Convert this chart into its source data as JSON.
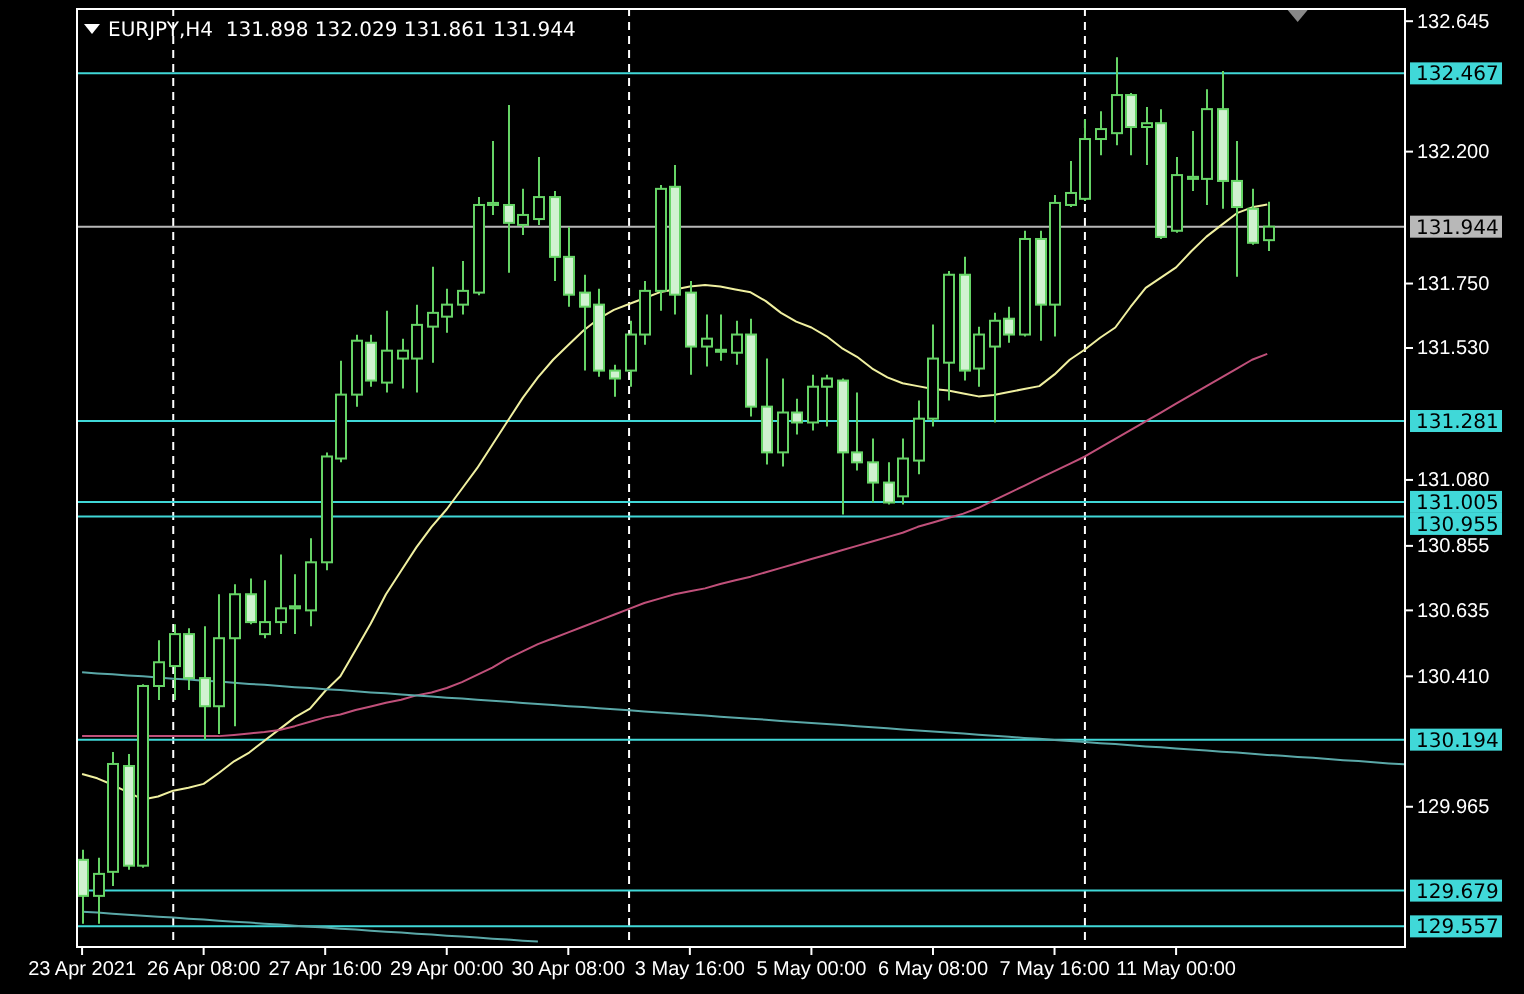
{
  "chart_data": {
    "type": "candlestick",
    "title": "EURJPY,H4  131.898 132.029 131.861 131.944",
    "color": "#66d466",
    "categories": [
      "23 Apr 2021",
      null,
      null,
      null,
      null,
      null,
      null,
      null,
      "26 Apr 08:00",
      null,
      null,
      null,
      null,
      null,
      null,
      null,
      "27 Apr 16:00",
      null,
      null,
      null,
      null,
      null,
      null,
      null,
      "29 Apr 00:00",
      null,
      null,
      null,
      null,
      null,
      null,
      null,
      "30 Apr 08:00",
      null,
      null,
      null,
      null,
      null,
      null,
      null,
      "3 May 16:00",
      null,
      null,
      null,
      null,
      null,
      null,
      null,
      "5 May 00:00",
      null,
      null,
      null,
      null,
      null,
      null,
      null,
      "6 May 08:00",
      null,
      null,
      null,
      null,
      null,
      null,
      null,
      "7 May 16:00",
      null,
      null,
      null,
      null,
      null,
      null,
      null,
      "11 May 00:00",
      null,
      null,
      null,
      null,
      null,
      null,
      null,
      null,
      null,
      null,
      null,
      null,
      null,
      null,
      null
    ],
    "ohlc": [
      [
        129.784,
        129.818,
        129.566,
        129.661
      ],
      [
        129.661,
        129.791,
        129.566,
        129.736
      ],
      [
        129.743,
        130.152,
        129.695,
        130.111
      ],
      [
        130.104,
        130.145,
        129.75,
        129.764
      ],
      [
        129.764,
        130.383,
        129.757,
        130.377
      ],
      [
        130.377,
        130.533,
        130.329,
        130.458
      ],
      [
        130.445,
        130.588,
        130.329,
        130.554
      ],
      [
        130.554,
        130.574,
        130.363,
        130.404
      ],
      [
        130.404,
        130.581,
        130.193,
        130.308
      ],
      [
        130.308,
        130.69,
        130.213,
        130.54
      ],
      [
        130.54,
        130.724,
        130.24,
        130.69
      ],
      [
        130.69,
        130.744,
        130.588,
        130.595
      ],
      [
        130.554,
        130.738,
        130.54,
        130.595
      ],
      [
        130.595,
        130.826,
        130.554,
        130.642
      ],
      [
        130.642,
        130.758,
        130.554,
        130.649
      ],
      [
        130.635,
        130.881,
        130.581,
        130.799
      ],
      [
        130.799,
        131.174,
        130.772,
        131.16
      ],
      [
        131.153,
        131.487,
        131.14,
        131.371
      ],
      [
        131.371,
        131.575,
        131.33,
        131.555
      ],
      [
        131.548,
        131.575,
        131.398,
        131.419
      ],
      [
        131.412,
        131.657,
        131.378,
        131.521
      ],
      [
        131.494,
        131.562,
        131.392,
        131.521
      ],
      [
        131.494,
        131.678,
        131.378,
        131.609
      ],
      [
        131.603,
        131.807,
        131.48,
        131.65
      ],
      [
        131.637,
        131.732,
        131.582,
        131.678
      ],
      [
        131.678,
        131.827,
        131.644,
        131.725
      ],
      [
        131.719,
        132.045,
        131.71,
        132.018
      ],
      [
        132.018,
        132.236,
        131.984,
        132.025
      ],
      [
        132.018,
        132.359,
        131.787,
        131.957
      ],
      [
        131.95,
        132.073,
        131.916,
        131.984
      ],
      [
        131.97,
        132.182,
        131.95,
        132.045
      ],
      [
        132.045,
        132.066,
        131.759,
        131.841
      ],
      [
        131.841,
        131.943,
        131.671,
        131.712
      ],
      [
        131.719,
        131.78,
        131.453,
        131.671
      ],
      [
        131.678,
        131.732,
        131.432,
        131.453
      ],
      [
        131.453,
        131.473,
        131.364,
        131.426
      ],
      [
        131.453,
        131.623,
        131.398,
        131.576
      ],
      [
        131.576,
        131.759,
        131.541,
        131.725
      ],
      [
        131.725,
        132.086,
        131.657,
        132.073
      ],
      [
        132.08,
        132.154,
        131.644,
        131.712
      ],
      [
        131.719,
        131.759,
        131.439,
        131.535
      ],
      [
        131.535,
        131.644,
        131.467,
        131.562
      ],
      [
        131.521,
        131.644,
        131.487,
        131.524
      ],
      [
        131.514,
        131.623,
        131.473,
        131.576
      ],
      [
        131.576,
        131.63,
        131.296,
        131.33
      ],
      [
        131.33,
        131.494,
        131.133,
        131.174
      ],
      [
        131.174,
        131.426,
        131.126,
        131.31
      ],
      [
        131.31,
        131.357,
        131.235,
        131.276
      ],
      [
        131.276,
        131.439,
        131.249,
        131.398
      ],
      [
        131.398,
        131.439,
        131.262,
        131.426
      ],
      [
        131.419,
        131.426,
        130.962,
        131.174
      ],
      [
        131.174,
        131.378,
        131.112,
        131.14
      ],
      [
        131.14,
        131.221,
        131.003,
        131.071
      ],
      [
        131.071,
        131.14,
        130.996,
        131.003
      ],
      [
        131.024,
        131.221,
        130.996,
        131.153
      ],
      [
        131.146,
        131.351,
        131.099,
        131.289
      ],
      [
        131.289,
        131.61,
        131.262,
        131.494
      ],
      [
        131.48,
        131.793,
        131.351,
        131.78
      ],
      [
        131.78,
        131.841,
        131.419,
        131.453
      ],
      [
        131.46,
        131.603,
        131.398,
        131.576
      ],
      [
        131.535,
        131.65,
        131.276,
        131.623
      ],
      [
        131.63,
        131.671,
        131.548,
        131.576
      ],
      [
        131.576,
        131.93,
        131.569,
        131.902
      ],
      [
        131.902,
        131.93,
        131.555,
        131.678
      ],
      [
        131.678,
        132.052,
        131.569,
        132.025
      ],
      [
        132.018,
        132.168,
        132.011,
        132.059
      ],
      [
        132.039,
        132.311,
        132.032,
        132.243
      ],
      [
        132.243,
        132.338,
        132.188,
        132.277
      ],
      [
        132.263,
        132.522,
        132.222,
        132.393
      ],
      [
        132.393,
        132.4,
        132.188,
        132.284
      ],
      [
        132.284,
        132.352,
        132.154,
        132.297
      ],
      [
        132.297,
        132.345,
        131.902,
        131.909
      ],
      [
        131.93,
        132.182,
        131.923,
        132.12
      ],
      [
        132.107,
        132.27,
        132.066,
        132.114
      ],
      [
        132.107,
        132.413,
        132.018,
        132.345
      ],
      [
        132.345,
        132.475,
        132.005,
        132.1
      ],
      [
        132.1,
        132.236,
        131.773,
        132.011
      ],
      [
        132.005,
        132.073,
        131.882,
        131.889
      ],
      [
        131.898,
        132.029,
        131.861,
        131.944
      ],
      null,
      null,
      null,
      null,
      null,
      null,
      null,
      null,
      null
    ],
    "series": [
      {
        "type": "line",
        "color": "#f0f0a0",
        "values": [
          130.077,
          130.062,
          130.04,
          130.015,
          129.99,
          130.0,
          130.02,
          130.03,
          130.043,
          130.08,
          130.12,
          130.15,
          130.19,
          130.23,
          130.27,
          130.3,
          130.36,
          130.41,
          130.5,
          130.59,
          130.69,
          130.77,
          130.85,
          130.92,
          130.98,
          131.05,
          131.12,
          131.2,
          131.28,
          131.36,
          131.43,
          131.49,
          131.54,
          131.59,
          131.63,
          131.66,
          131.68,
          131.7,
          131.72,
          131.73,
          131.74,
          131.745,
          131.74,
          131.73,
          131.72,
          131.69,
          131.65,
          131.62,
          131.6,
          131.57,
          131.53,
          131.5,
          131.46,
          131.43,
          131.41,
          131.4,
          131.39,
          131.385,
          131.375,
          131.365,
          131.37,
          131.38,
          131.39,
          131.4,
          131.44,
          131.49,
          131.525,
          131.565,
          131.6,
          131.67,
          131.735,
          131.77,
          131.805,
          131.86,
          131.91,
          131.95,
          131.99,
          132.01,
          132.02,
          null,
          null,
          null,
          null,
          null,
          null,
          null,
          null,
          null
        ]
      },
      {
        "type": "line",
        "color": "#c0507a",
        "values": [
          130.206,
          130.206,
          130.206,
          130.206,
          130.206,
          130.206,
          130.206,
          130.206,
          130.206,
          130.206,
          130.21,
          130.215,
          130.22,
          130.227,
          130.24,
          130.255,
          130.27,
          130.28,
          130.295,
          130.307,
          130.32,
          130.33,
          130.345,
          130.355,
          130.37,
          130.39,
          130.415,
          130.44,
          130.47,
          130.495,
          130.52,
          130.54,
          130.56,
          130.58,
          130.6,
          130.62,
          130.64,
          130.66,
          130.675,
          130.69,
          130.7,
          130.71,
          130.725,
          130.738,
          130.75,
          130.765,
          130.78,
          130.795,
          130.81,
          130.825,
          130.84,
          130.855,
          130.87,
          130.885,
          130.9,
          130.92,
          130.935,
          130.95,
          130.965,
          130.985,
          131.01,
          131.035,
          131.06,
          131.085,
          131.11,
          131.135,
          131.16,
          131.19,
          131.22,
          131.25,
          131.28,
          131.31,
          131.34,
          131.37,
          131.4,
          131.43,
          131.46,
          131.49,
          131.51,
          null,
          null,
          null,
          null,
          null,
          null,
          null,
          null,
          null
        ]
      },
      {
        "type": "line",
        "color": "#5aa8a8",
        "values": [
          130.424,
          130.42,
          130.417,
          130.413,
          130.41,
          130.406,
          130.402,
          130.399,
          130.395,
          130.392,
          130.388,
          130.384,
          130.381,
          130.377,
          130.373,
          130.37,
          130.366,
          130.363,
          130.359,
          130.355,
          130.352,
          130.348,
          130.345,
          130.341,
          130.337,
          130.334,
          130.33,
          130.327,
          130.323,
          130.319,
          130.316,
          130.312,
          130.308,
          130.305,
          130.301,
          130.298,
          130.294,
          130.29,
          130.287,
          130.283,
          130.28,
          130.276,
          130.272,
          130.269,
          130.265,
          130.262,
          130.258,
          130.254,
          130.251,
          130.247,
          130.244,
          130.24,
          130.236,
          130.233,
          130.229,
          130.225,
          130.222,
          130.218,
          130.215,
          130.211,
          130.207,
          130.204,
          130.2,
          130.197,
          130.193,
          130.189,
          130.186,
          130.182,
          130.179,
          130.175,
          130.171,
          130.168,
          130.164,
          130.16,
          130.157,
          130.153,
          130.15,
          130.146,
          130.142,
          130.139,
          130.135,
          130.132,
          130.128,
          130.124,
          130.121,
          130.117,
          130.113,
          130.11
        ]
      },
      {
        "type": "line",
        "color": "#5aa8a8",
        "values": [
          129.607,
          129.604,
          129.6,
          129.597,
          129.593,
          129.59,
          129.587,
          129.583,
          129.58,
          129.576,
          129.573,
          129.57,
          129.566,
          129.563,
          129.559,
          129.556,
          129.553,
          129.549,
          129.546,
          129.542,
          129.539,
          129.536,
          129.532,
          129.529,
          129.525,
          129.522,
          129.519,
          129.515,
          129.512,
          129.508,
          129.505,
          null,
          null,
          null,
          null,
          null,
          null,
          null,
          null,
          null,
          null,
          null,
          null,
          null,
          null,
          null,
          null,
          null,
          null,
          null,
          null,
          null,
          null,
          null,
          null,
          null,
          null,
          null,
          null,
          null,
          null,
          null,
          null,
          null,
          null,
          null,
          null,
          null,
          null,
          null,
          null,
          null,
          null,
          null,
          null,
          null,
          null,
          null,
          null,
          null,
          null,
          null,
          null,
          null,
          null,
          null,
          null,
          null
        ]
      }
    ],
    "ylim": [
      129.49,
      132.69
    ],
    "yticks": [
      {
        "value": 132.645,
        "label": "132.645"
      },
      {
        "value": 132.2,
        "label": "132.200"
      },
      {
        "value": 131.75,
        "label": "131.750"
      },
      {
        "value": 131.53,
        "label": "131.530"
      },
      {
        "value": 131.08,
        "label": "131.080"
      },
      {
        "value": 130.855,
        "label": "130.855"
      },
      {
        "value": 130.635,
        "label": "130.635"
      },
      {
        "value": 130.41,
        "label": "130.410"
      },
      {
        "value": 129.965,
        "label": "129.965"
      }
    ],
    "ref_lines": [
      {
        "axis": "y",
        "value": 132.467,
        "label": "132.467",
        "color": "#40d8d8"
      },
      {
        "axis": "y",
        "value": 131.944,
        "label": "131.944",
        "color": "#b8b8b8"
      },
      {
        "axis": "y",
        "value": 131.281,
        "label": "131.281",
        "color": "#40d8d8"
      },
      {
        "axis": "y",
        "value": 131.005,
        "label": "131.005",
        "color": "#40d8d8"
      },
      {
        "axis": "y",
        "value": 130.955,
        "label": "130.955",
        "color": "#40d8d8"
      },
      {
        "axis": "y",
        "value": 130.194,
        "label": "130.194",
        "color": "#40d8d8"
      },
      {
        "axis": "y",
        "value": 129.679,
        "label": "129.679",
        "color": "#40d8d8"
      },
      {
        "axis": "y",
        "value": 129.557,
        "label": "129.557",
        "color": "#40d8d8"
      }
    ],
    "grid": "x"
  }
}
